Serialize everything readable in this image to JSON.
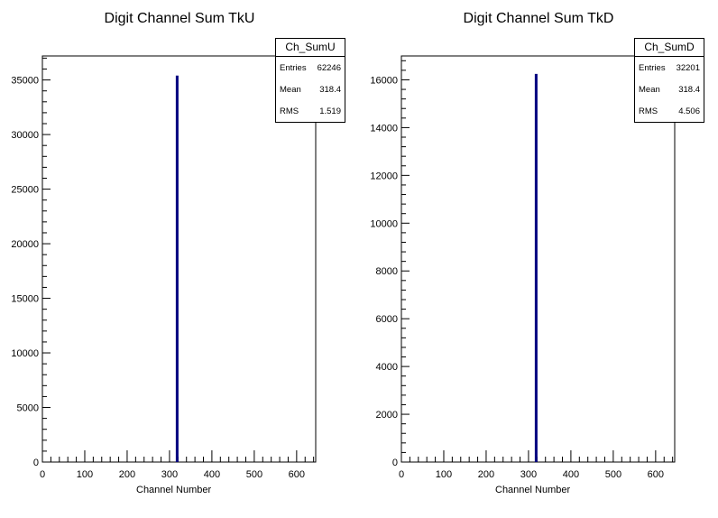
{
  "chart_data": [
    {
      "type": "bar",
      "title": "Digit Channel Sum TkU",
      "xlabel": "Channel Number",
      "ylabel": "",
      "xlim": [
        0,
        645
      ],
      "ylim": [
        0,
        37200
      ],
      "xticks": [
        0,
        100,
        200,
        300,
        400,
        500,
        600
      ],
      "yticks": [
        0,
        5000,
        10000,
        15000,
        20000,
        25000,
        30000,
        35000
      ],
      "x": [
        318
      ],
      "values": [
        35400
      ],
      "stats": {
        "name": "Ch_SumU",
        "entries_label": "Entries",
        "entries": "62246",
        "mean_label": "Mean",
        "mean": "318.4",
        "rms_label": "RMS",
        "rms": "1.519"
      },
      "line_color": "#000080"
    },
    {
      "type": "bar",
      "title": "Digit Channel Sum TkD",
      "xlabel": "Channel Number",
      "ylabel": "",
      "xlim": [
        0,
        645
      ],
      "ylim": [
        0,
        17000
      ],
      "xticks": [
        0,
        100,
        200,
        300,
        400,
        500,
        600
      ],
      "yticks": [
        0,
        2000,
        4000,
        6000,
        8000,
        10000,
        12000,
        14000,
        16000
      ],
      "x": [
        318
      ],
      "values": [
        16250
      ],
      "stats": {
        "name": "Ch_SumD",
        "entries_label": "Entries",
        "entries": "32201",
        "mean_label": "Mean",
        "mean": "318.4",
        "rms_label": "RMS",
        "rms": "4.506"
      },
      "line_color": "#000080"
    }
  ]
}
